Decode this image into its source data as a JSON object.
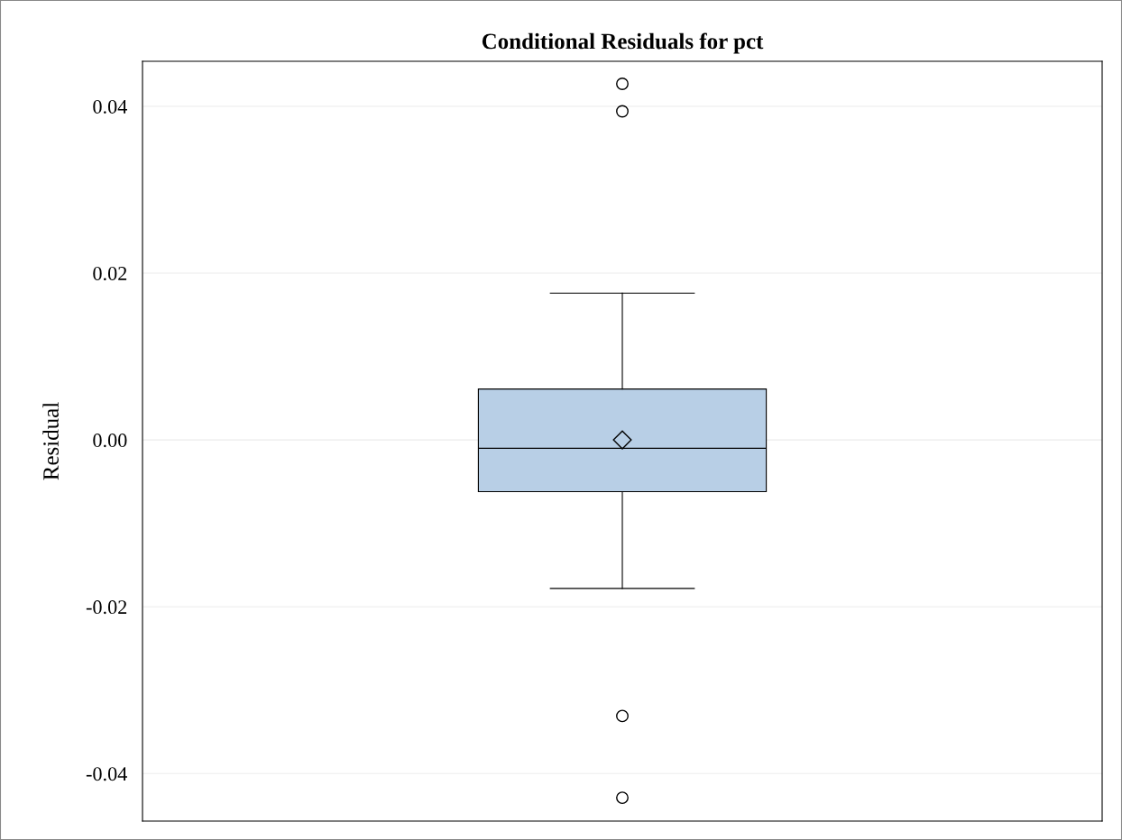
{
  "chart_data": {
    "type": "box",
    "title": "Conditional Residuals for pct",
    "ylabel": "Residual",
    "categories": [
      null
    ],
    "boxes": [
      {
        "low": -0.0178,
        "q1": -0.0062,
        "median": -0.001,
        "q3": 0.0061,
        "high": 0.0176,
        "mean": 0.0,
        "outliers": [
          0.0427,
          0.0394,
          -0.0331,
          -0.0429
        ]
      }
    ],
    "color": "#b8cfe6",
    "ylim": [
      -0.0457,
      0.0454
    ],
    "yticks": [
      -0.04,
      -0.02,
      {
        "value": 0,
        "label": "0.00"
      },
      0.02,
      0.04
    ],
    "grid": "y"
  }
}
